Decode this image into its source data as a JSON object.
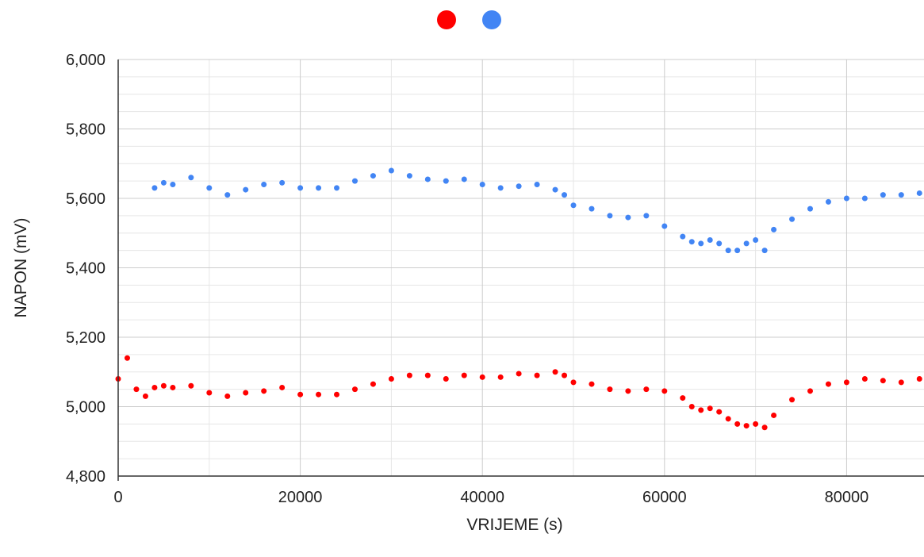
{
  "chart_data": {
    "type": "scatter",
    "title": "",
    "xlabel": "VRIJEME (s)",
    "ylabel": "NAPON (mV)",
    "xlim": [
      0,
      88500
    ],
    "ylim": [
      4800,
      6000
    ],
    "x_ticks": [
      0,
      20000,
      40000,
      60000,
      80000
    ],
    "x_tick_labels": [
      "0",
      "20000",
      "40000",
      "60000",
      "80000"
    ],
    "y_ticks": [
      4800,
      5000,
      5200,
      5400,
      5600,
      5800,
      6000
    ],
    "y_tick_labels": [
      "4,800",
      "5,000",
      "5,200",
      "5,400",
      "5,600",
      "5,800",
      "6,000"
    ],
    "grid": true,
    "legend": "top-center",
    "series": [
      {
        "color": "#ff0000",
        "x": [
          0,
          1000,
          2000,
          3000,
          4000,
          5000,
          6000,
          8000,
          10000,
          12000,
          14000,
          16000,
          18000,
          20000,
          22000,
          24000,
          26000,
          28000,
          30000,
          32000,
          34000,
          36000,
          38000,
          40000,
          42000,
          44000,
          46000,
          48000,
          49000,
          50000,
          52000,
          54000,
          56000,
          58000,
          60000,
          62000,
          63000,
          64000,
          65000,
          66000,
          67000,
          68000,
          69000,
          70000,
          71000,
          72000,
          74000,
          76000,
          78000,
          80000,
          82000,
          84000,
          86000,
          88000
        ],
        "values": [
          5080,
          5140,
          5050,
          5030,
          5055,
          5060,
          5055,
          5060,
          5040,
          5030,
          5040,
          5045,
          5055,
          5035,
          5035,
          5035,
          5050,
          5065,
          5080,
          5090,
          5090,
          5080,
          5090,
          5085,
          5085,
          5095,
          5090,
          5100,
          5090,
          5070,
          5065,
          5050,
          5045,
          5050,
          5045,
          5025,
          5000,
          4990,
          4995,
          4985,
          4965,
          4950,
          4945,
          4950,
          4940,
          4975,
          5020,
          5045,
          5065,
          5070,
          5080,
          5075,
          5070,
          5080
        ]
      },
      {
        "color": "#4285f4",
        "x": [
          4000,
          5000,
          6000,
          8000,
          10000,
          12000,
          14000,
          16000,
          18000,
          20000,
          22000,
          24000,
          26000,
          28000,
          30000,
          32000,
          34000,
          36000,
          38000,
          40000,
          42000,
          44000,
          46000,
          48000,
          49000,
          50000,
          52000,
          54000,
          56000,
          58000,
          60000,
          62000,
          63000,
          64000,
          65000,
          66000,
          67000,
          68000,
          69000,
          70000,
          71000,
          72000,
          74000,
          76000,
          78000,
          80000,
          82000,
          84000,
          86000,
          88000
        ],
        "values": [
          5630,
          5645,
          5640,
          5660,
          5630,
          5610,
          5625,
          5640,
          5645,
          5630,
          5630,
          5630,
          5650,
          5665,
          5680,
          5665,
          5655,
          5650,
          5655,
          5640,
          5630,
          5635,
          5640,
          5625,
          5610,
          5580,
          5570,
          5550,
          5545,
          5550,
          5520,
          5490,
          5475,
          5470,
          5480,
          5470,
          5450,
          5450,
          5470,
          5480,
          5450,
          5510,
          5540,
          5570,
          5590,
          5600,
          5600,
          5610,
          5610,
          5615
        ]
      }
    ]
  }
}
